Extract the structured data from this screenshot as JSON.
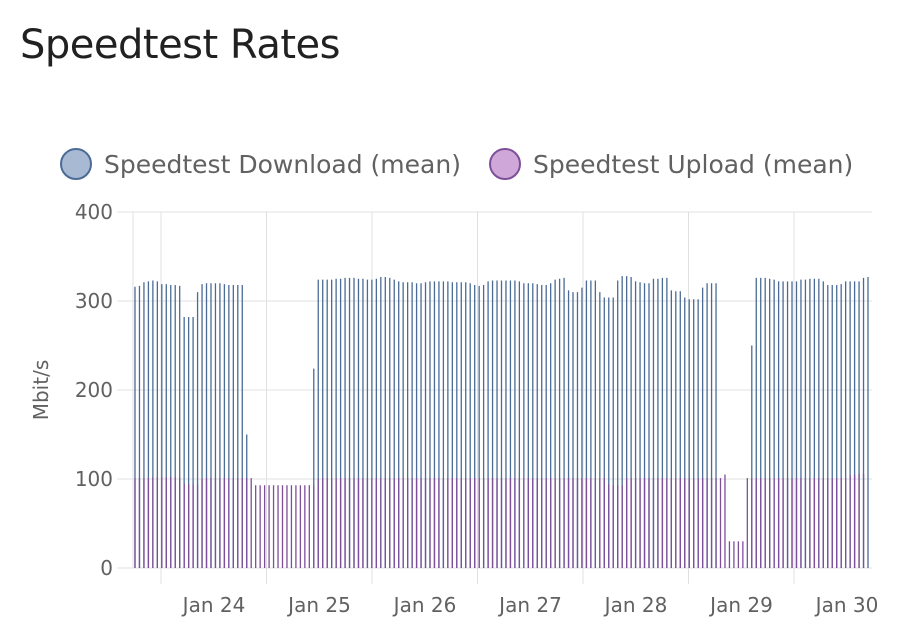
{
  "card": {
    "title": "Speedtest Rates"
  },
  "chart_data": {
    "type": "bar",
    "title": "Speedtest Rates",
    "ylabel": "Mbit/s",
    "ylim": [
      0,
      400
    ],
    "yticks": [
      "0",
      "100",
      "200",
      "300",
      "400"
    ],
    "xticks": [
      "Jan 24",
      "Jan 25",
      "Jan 26",
      "Jan 27",
      "Jan 28",
      "Jan 29",
      "Jan 30"
    ],
    "grid": true,
    "legend": "top",
    "colors": {
      "download": "#4b6b95",
      "upload": "#7d4f99",
      "download_fill": "#a8b9d4",
      "upload_fill": "#cfa8d9"
    },
    "series": [
      {
        "name": "Speedtest Download (mean)",
        "values": [
          316,
          317,
          321,
          322,
          323,
          322,
          319,
          319,
          318,
          318,
          317,
          282,
          282,
          282,
          310,
          319,
          320,
          320,
          320,
          320,
          319,
          318,
          318,
          318,
          318,
          150,
          null,
          null,
          null,
          null,
          null,
          null,
          null,
          null,
          null,
          null,
          null,
          null,
          null,
          null,
          224,
          324,
          324,
          324,
          324,
          325,
          325,
          326,
          326,
          326,
          325,
          325,
          324,
          324,
          325,
          327,
          327,
          326,
          324,
          322,
          321,
          321,
          321,
          320,
          320,
          321,
          322,
          322,
          322,
          322,
          322,
          321,
          321,
          321,
          321,
          320,
          318,
          317,
          318,
          322,
          323,
          323,
          323,
          323,
          323,
          323,
          322,
          320,
          320,
          320,
          319,
          318,
          318,
          320,
          324,
          325,
          326,
          312,
          310,
          310,
          315,
          323,
          323,
          323,
          310,
          304,
          304,
          304,
          323,
          328,
          328,
          327,
          322,
          321,
          320,
          320,
          325,
          325,
          326,
          326,
          312,
          311,
          311,
          304,
          302,
          302,
          302,
          315,
          320,
          320,
          320,
          null,
          null,
          null,
          null,
          null,
          null,
          null,
          250,
          326,
          326,
          326,
          325,
          324,
          322,
          322,
          322,
          322,
          322,
          324,
          324,
          325,
          325,
          325,
          322,
          318,
          318,
          318,
          319,
          322,
          322,
          322,
          322,
          326,
          327
        ]
      },
      {
        "name": "Speedtest Upload (mean)",
        "values": [
          101,
          101,
          101,
          101,
          102,
          102,
          102,
          102,
          102,
          102,
          102,
          95,
          94,
          94,
          94,
          100,
          101,
          101,
          101,
          101,
          101,
          101,
          101,
          101,
          101,
          101,
          101,
          93,
          93,
          93,
          93,
          93,
          93,
          93,
          93,
          93,
          93,
          93,
          93,
          93,
          93,
          100,
          101,
          101,
          101,
          101,
          101,
          101,
          101,
          101,
          101,
          101,
          101,
          101,
          101,
          101,
          101,
          101,
          101,
          101,
          101,
          101,
          101,
          101,
          101,
          101,
          101,
          101,
          101,
          101,
          101,
          101,
          101,
          101,
          101,
          101,
          101,
          101,
          101,
          101,
          101,
          101,
          101,
          101,
          101,
          101,
          101,
          101,
          101,
          101,
          101,
          101,
          101,
          101,
          101,
          101,
          101,
          101,
          101,
          101,
          101,
          101,
          101,
          101,
          101,
          101,
          94,
          93,
          93,
          93,
          101,
          101,
          101,
          101,
          101,
          101,
          101,
          101,
          101,
          101,
          101,
          101,
          101,
          101,
          101,
          101,
          101,
          101,
          101,
          101,
          101,
          101,
          105,
          30,
          30,
          30,
          30,
          101,
          101,
          101,
          101,
          101,
          101,
          101,
          101,
          101,
          101,
          101,
          101,
          101,
          101,
          101,
          101,
          101,
          101,
          101,
          101,
          101,
          101,
          101,
          104,
          105,
          106,
          106
        ]
      }
    ]
  }
}
